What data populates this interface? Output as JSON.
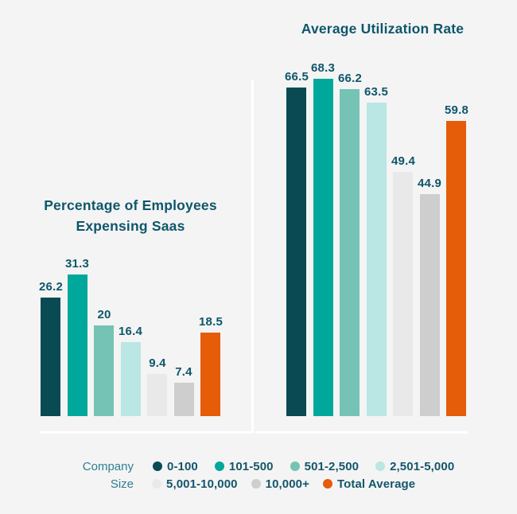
{
  "colors": {
    "background": "#f4f4f4",
    "axis_line": "#ffffff",
    "title_text": "#0e566b",
    "value_label_text": "#0e566b",
    "legend_group_text": "#2f7e95",
    "legend_item_text": "#14566b"
  },
  "series": [
    {
      "label": "0-100",
      "color": "#0a4a52"
    },
    {
      "label": "101-500",
      "color": "#00a89b"
    },
    {
      "label": "501-2,500",
      "color": "#75c3b4"
    },
    {
      "label": "2,501-5,000",
      "color": "#bae6e4"
    },
    {
      "label": "5,001-10,000",
      "color": "#e9e9e9",
      "texture": "dots"
    },
    {
      "label": "10,000+",
      "color": "#cecece"
    },
    {
      "label": "Total Average",
      "color": "#e55c09"
    }
  ],
  "legend": {
    "group_label_lines": [
      "Company",
      "Size"
    ],
    "row_split": 4,
    "position": "bottom"
  },
  "chart_data": [
    {
      "type": "bar",
      "title_lines": [
        "Percentage of Employees",
        "Expensing Saas"
      ],
      "categories": [
        "0-100",
        "101-500",
        "501-2,500",
        "2,501-5,000",
        "5,001-10,000",
        "10,000+",
        "Total Average"
      ],
      "values": [
        26.2,
        31.3,
        20,
        16.4,
        9.4,
        7.4,
        18.5
      ],
      "xlabel": "",
      "ylabel": "",
      "ylim": [
        0,
        31.3
      ],
      "grid": false,
      "data_labels": true
    },
    {
      "type": "bar",
      "title_lines": [
        "Average Utilization Rate"
      ],
      "categories": [
        "0-100",
        "101-500",
        "501-2,500",
        "2,501-5,000",
        "5,001-10,000",
        "10,000+",
        "Total Average"
      ],
      "values": [
        66.5,
        68.3,
        66.2,
        63.5,
        49.4,
        44.9,
        59.8
      ],
      "xlabel": "",
      "ylabel": "",
      "ylim": [
        0,
        68.3
      ],
      "grid": false,
      "data_labels": true
    }
  ]
}
